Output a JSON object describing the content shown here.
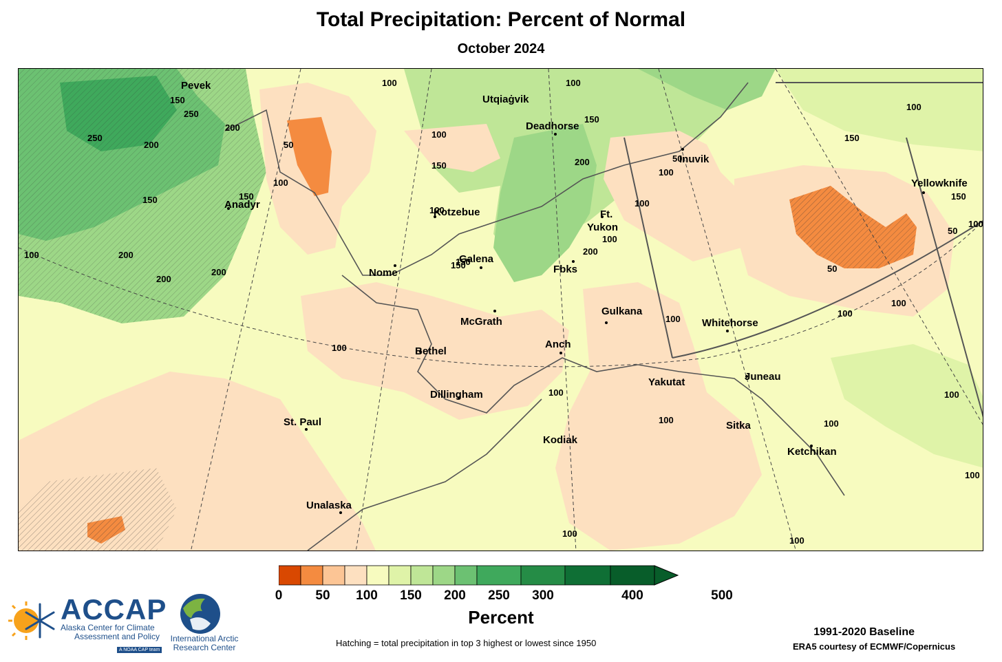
{
  "title": "Total Precipitation: Percent of Normal",
  "subtitle": "October 2024",
  "cities": [
    {
      "name": "Pevek"
    },
    {
      "name": "Utqiaġvik"
    },
    {
      "name": "Deadhorse"
    },
    {
      "name": "Inuvik"
    },
    {
      "name": "Yellowknife"
    },
    {
      "name": "Anadyr"
    },
    {
      "name": "Kotzebue"
    },
    {
      "name": "Ft."
    },
    {
      "name": "Yukon"
    },
    {
      "name": "Galena"
    },
    {
      "name": "Nome"
    },
    {
      "name": "Fbks"
    },
    {
      "name": "McGrath"
    },
    {
      "name": "Gulkana"
    },
    {
      "name": "Whitehorse"
    },
    {
      "name": "Bethel"
    },
    {
      "name": "Anch"
    },
    {
      "name": "Yakutat"
    },
    {
      "name": "Juneau"
    },
    {
      "name": "Dillingham"
    },
    {
      "name": "St. Paul"
    },
    {
      "name": "Kodiak"
    },
    {
      "name": "Sitka"
    },
    {
      "name": "Ketchikan"
    },
    {
      "name": "Unalaska"
    }
  ],
  "contour_labels": [
    "100",
    "150",
    "200",
    "250",
    "50",
    "100",
    "150",
    "200",
    "250",
    "150",
    "200",
    "100",
    "50",
    "100",
    "150",
    "100",
    "150",
    "200",
    "100",
    "150",
    "200",
    "100",
    "50",
    "100",
    "100",
    "150",
    "100",
    "50",
    "100",
    "100",
    "100",
    "100",
    "100",
    "100",
    "150",
    "200",
    "200",
    "150",
    "100",
    "100",
    "50",
    "100",
    "100",
    "100",
    "100"
  ],
  "colorbar": {
    "label": "Percent",
    "ticks": [
      "0",
      "50",
      "100",
      "150",
      "200",
      "250",
      "300",
      "400",
      "500"
    ],
    "colors": [
      "#d94801",
      "#f48b40",
      "#fcc595",
      "#fde0c0",
      "#f7fbbf",
      "#dff3a8",
      "#bfe697",
      "#9dd787",
      "#6cc172",
      "#3fa95c",
      "#258c46",
      "#0f6f35",
      "#085d2a"
    ]
  },
  "footnote": "Hatching = total precipitation in top 3 highest or lowest since 1950",
  "baseline": "1991-2020 Baseline",
  "credit": "ERA5 courtesy of ECMWF/Copernicus",
  "logos": {
    "accap_name": "ACCAP",
    "accap_sub1": "Alaska Center for Climate",
    "accap_sub2": "Assessment and Policy",
    "accap_team": "A NOAA CAP team",
    "iarc_line1": "International Arctic",
    "iarc_line2": "Research Center"
  }
}
